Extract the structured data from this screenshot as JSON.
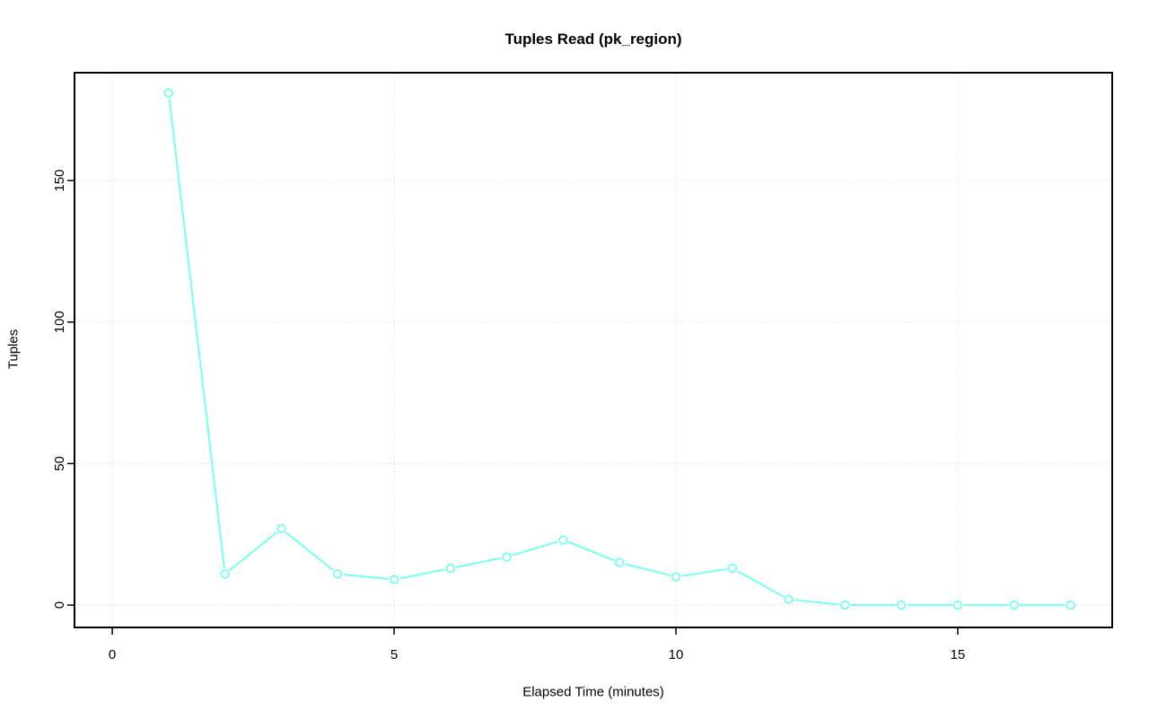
{
  "title": "Tuples Read (pk_region)",
  "x_axis_label": "Elapsed Time (minutes)",
  "y_axis_label": "Tuples",
  "chart_data": {
    "type": "line",
    "title": "Tuples Read (pk_region)",
    "xlabel": "Elapsed Time (minutes)",
    "ylabel": "Tuples",
    "series": [
      {
        "name": "tuples-read",
        "x": [
          1,
          2,
          3,
          4,
          5,
          6,
          7,
          8,
          9,
          10,
          11,
          12,
          13,
          14,
          15,
          16,
          17
        ],
        "y": [
          181,
          11,
          27,
          11,
          9,
          13,
          17,
          23,
          15,
          10,
          13,
          2,
          0,
          0,
          0,
          0,
          0
        ]
      }
    ],
    "x_ticks": [
      0,
      5,
      10,
      15
    ],
    "y_ticks": [
      0,
      50,
      100,
      150
    ],
    "xlim": [
      -0.67,
      17.74
    ],
    "ylim": [
      -7.9,
      188.1
    ],
    "grid": true,
    "grid_style": "dotted",
    "legend_position": "none",
    "marker": "open-circle",
    "line_color": "#80FFF2",
    "grid_color": "#d4d4d4",
    "axis_color": "#000000",
    "background_color": "#ffffff"
  }
}
